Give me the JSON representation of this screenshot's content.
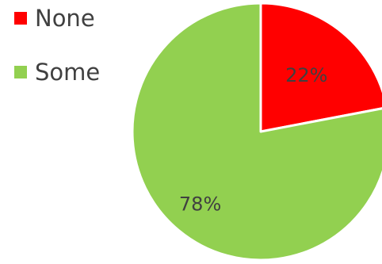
{
  "chart_data": {
    "type": "pie",
    "title": "",
    "slices": [
      {
        "label": "None",
        "value": 22,
        "data_label": "22%",
        "color": "#ff0000"
      },
      {
        "label": "Some",
        "value": 78,
        "data_label": "78%",
        "color": "#92d050"
      }
    ],
    "start_angle_deg": 0,
    "direction": "clockwise",
    "legend_position": "top-left",
    "label_color": "#404040",
    "slice_border_color": "#ffffff"
  }
}
